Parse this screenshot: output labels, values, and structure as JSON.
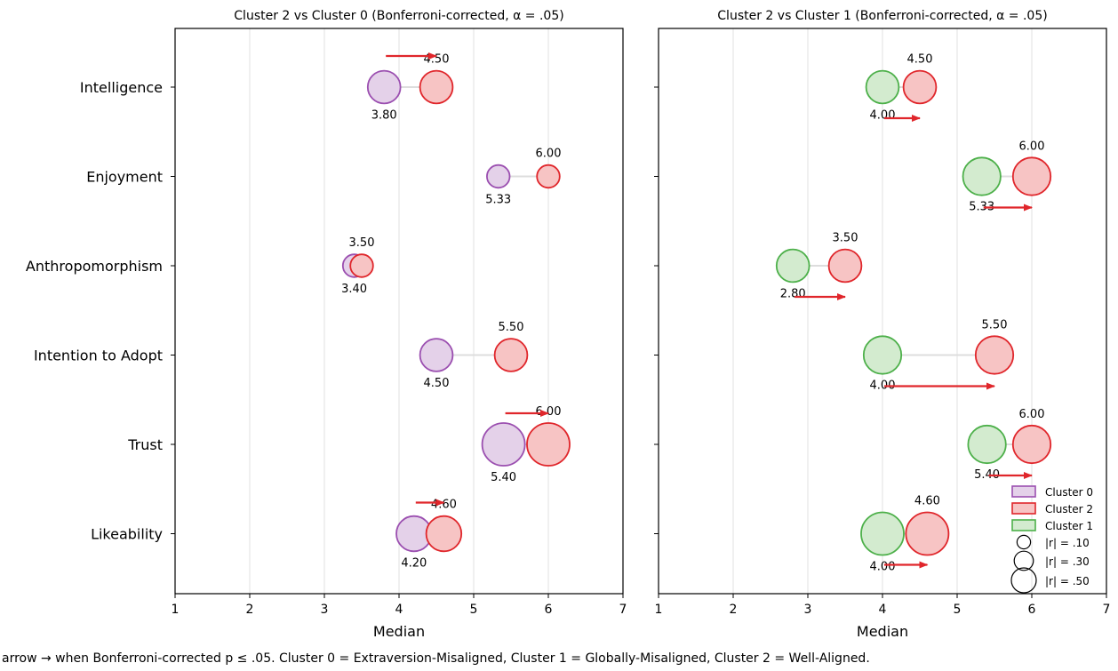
{
  "chart_data": {
    "type": "dumbbell",
    "categories": [
      "Intelligence",
      "Enjoyment",
      "Anthropomorphism",
      "Intention to Adopt",
      "Trust",
      "Likeability"
    ],
    "xlabel": "Median",
    "xlim": [
      1,
      7
    ],
    "xticks": [
      1,
      2,
      3,
      4,
      5,
      6,
      7
    ],
    "grid": "vertical",
    "panels": [
      {
        "title": "Cluster 2 vs Cluster 0 (Bonferroni-corrected, α = .05)",
        "comparison_cluster": "Cluster 0",
        "values_cluster2": [
          4.5,
          6.0,
          3.5,
          5.5,
          6.0,
          4.6
        ],
        "values_comparison": [
          3.8,
          5.33,
          3.4,
          4.5,
          5.4,
          4.2
        ],
        "labels_cluster2": [
          "4.50",
          "6.00",
          "3.50",
          "5.50",
          "6.00",
          "4.60"
        ],
        "labels_comparison": [
          "3.80",
          "5.33",
          "3.40",
          "4.50",
          "5.40",
          "4.20"
        ],
        "effect_r": [
          0.3,
          0.1,
          0.1,
          0.3,
          0.5,
          0.35
        ],
        "significant": [
          true,
          false,
          false,
          false,
          true,
          true
        ]
      },
      {
        "title": "Cluster 2 vs Cluster 1 (Bonferroni-corrected, α = .05)",
        "comparison_cluster": "Cluster 1",
        "values_cluster2": [
          4.5,
          6.0,
          3.5,
          5.5,
          6.0,
          4.6
        ],
        "values_comparison": [
          4.0,
          5.33,
          2.8,
          4.0,
          5.4,
          4.0
        ],
        "labels_cluster2": [
          "4.50",
          "6.00",
          "3.50",
          "5.50",
          "6.00",
          "4.60"
        ],
        "labels_comparison": [
          "4.00",
          "5.33",
          "2.80",
          "4.00",
          "5.40",
          "4.00"
        ],
        "effect_r": [
          0.3,
          0.4,
          0.3,
          0.4,
          0.4,
          0.5
        ],
        "significant": [
          true,
          true,
          true,
          true,
          true,
          true
        ]
      }
    ],
    "legend": {
      "placement": "lower-right",
      "entries": [
        "Cluster 0",
        "Cluster 2",
        "Cluster 1"
      ],
      "size_entries": [
        "|r| = .10",
        "|r| = .30",
        "|r| = .50"
      ],
      "size_values": [
        0.1,
        0.3,
        0.5
      ]
    },
    "colors": {
      "Cluster 0": {
        "fill": "#e4d1e9",
        "stroke": "#9b4fb0"
      },
      "Cluster 2": {
        "fill": "#f7c4c4",
        "stroke": "#e0262b"
      },
      "Cluster 1": {
        "fill": "#d3ebcf",
        "stroke": "#4db04a"
      },
      "arrow": "#e0262b",
      "connector": "#dddddd",
      "grid": "#e2e2e2"
    }
  },
  "caption": "arrow → when  Bonferroni-corrected p ≤ .05. Cluster 0 = Extraversion-Misaligned, Cluster 1 = Globally-Misaligned, Cluster 2 = Well-Aligned."
}
